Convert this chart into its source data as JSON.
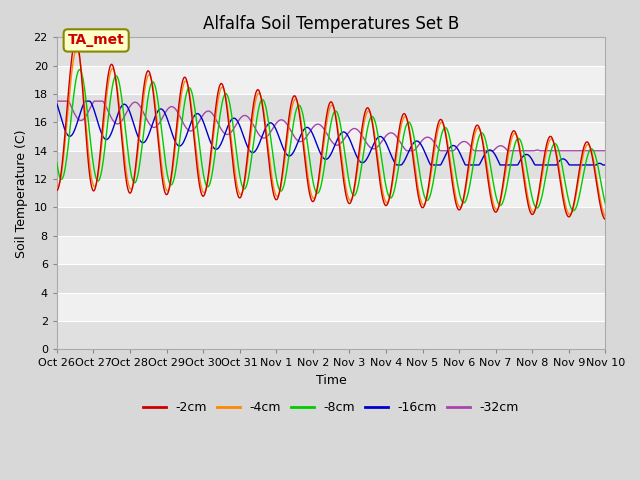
{
  "title": "Alfalfa Soil Temperatures Set B",
  "xlabel": "Time",
  "ylabel": "Soil Temperature (C)",
  "ylim": [
    0,
    22
  ],
  "yticks": [
    0,
    2,
    4,
    6,
    8,
    10,
    12,
    14,
    16,
    18,
    20,
    22
  ],
  "colors": {
    "2cm": "#cc0000",
    "4cm": "#ff8800",
    "8cm": "#00cc00",
    "16cm": "#0000cc",
    "32cm": "#aa44aa"
  },
  "annotation_label": "TA_met",
  "annotation_color": "#cc0000",
  "annotation_bg": "#ffffcc",
  "annotation_edge": "#888800",
  "fig_bg": "#d8d8d8",
  "plot_bg_light": "#f0f0f0",
  "plot_bg_dark": "#e0e0e0",
  "title_fontsize": 12,
  "tick_label_fontsize": 8,
  "axis_label_fontsize": 9,
  "legend_fontsize": 9,
  "x_tick_labels": [
    "Oct 26",
    "Oct 27",
    "Oct 28",
    "Oct 29",
    "Oct 30",
    "Oct 31",
    "Nov 1",
    "Nov 2",
    "Nov 3",
    "Nov 4",
    "Nov 5",
    "Nov 6",
    "Nov 7",
    "Nov 8",
    "Nov 9",
    "Nov 10"
  ],
  "n_days": 15,
  "points_per_day": 48
}
